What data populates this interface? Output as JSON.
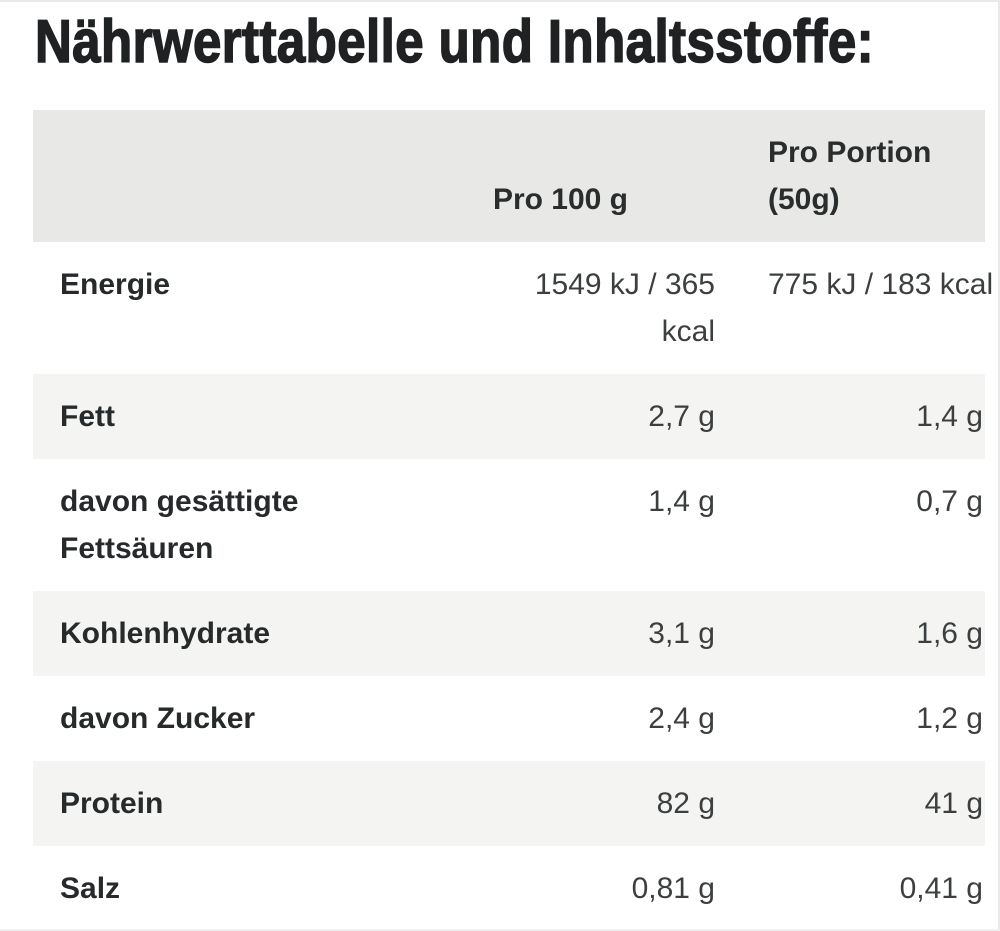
{
  "page": {
    "title": "Nährwerttabelle und Inhaltsstoffe:"
  },
  "table": {
    "columns": [
      {
        "label": ""
      },
      {
        "label": "Pro 100 g"
      },
      {
        "label": "Pro Portion (50g)"
      }
    ],
    "rows": [
      {
        "label": "Energie",
        "per_100g": "1549 kJ / 365 kcal",
        "per_portion": "775 kJ / 183 kcal",
        "striped": false
      },
      {
        "label": "Fett",
        "per_100g": "2,7 g",
        "per_portion": "1,4 g",
        "striped": true
      },
      {
        "label": "davon gesättigte Fettsäuren",
        "per_100g": "1,4 g",
        "per_portion": "0,7 g",
        "striped": false
      },
      {
        "label": "Kohlenhydrate",
        "per_100g": "3,1 g",
        "per_portion": "1,6 g",
        "striped": true
      },
      {
        "label": "davon Zucker",
        "per_100g": "2,4 g",
        "per_portion": "1,2 g",
        "striped": false
      },
      {
        "label": "Protein",
        "per_100g": "82 g",
        "per_portion": "41 g",
        "striped": true
      },
      {
        "label": "Salz",
        "per_100g": "0,81 g",
        "per_portion": "0,41 g",
        "striped": false
      }
    ],
    "colors": {
      "header_bg": "#e8e8e7",
      "stripe_bg": "#f4f4f3",
      "row_bg": "#ffffff",
      "title_text": "#1f2122",
      "label_text": "#272a2b",
      "value_text": "#3c3f40"
    }
  }
}
